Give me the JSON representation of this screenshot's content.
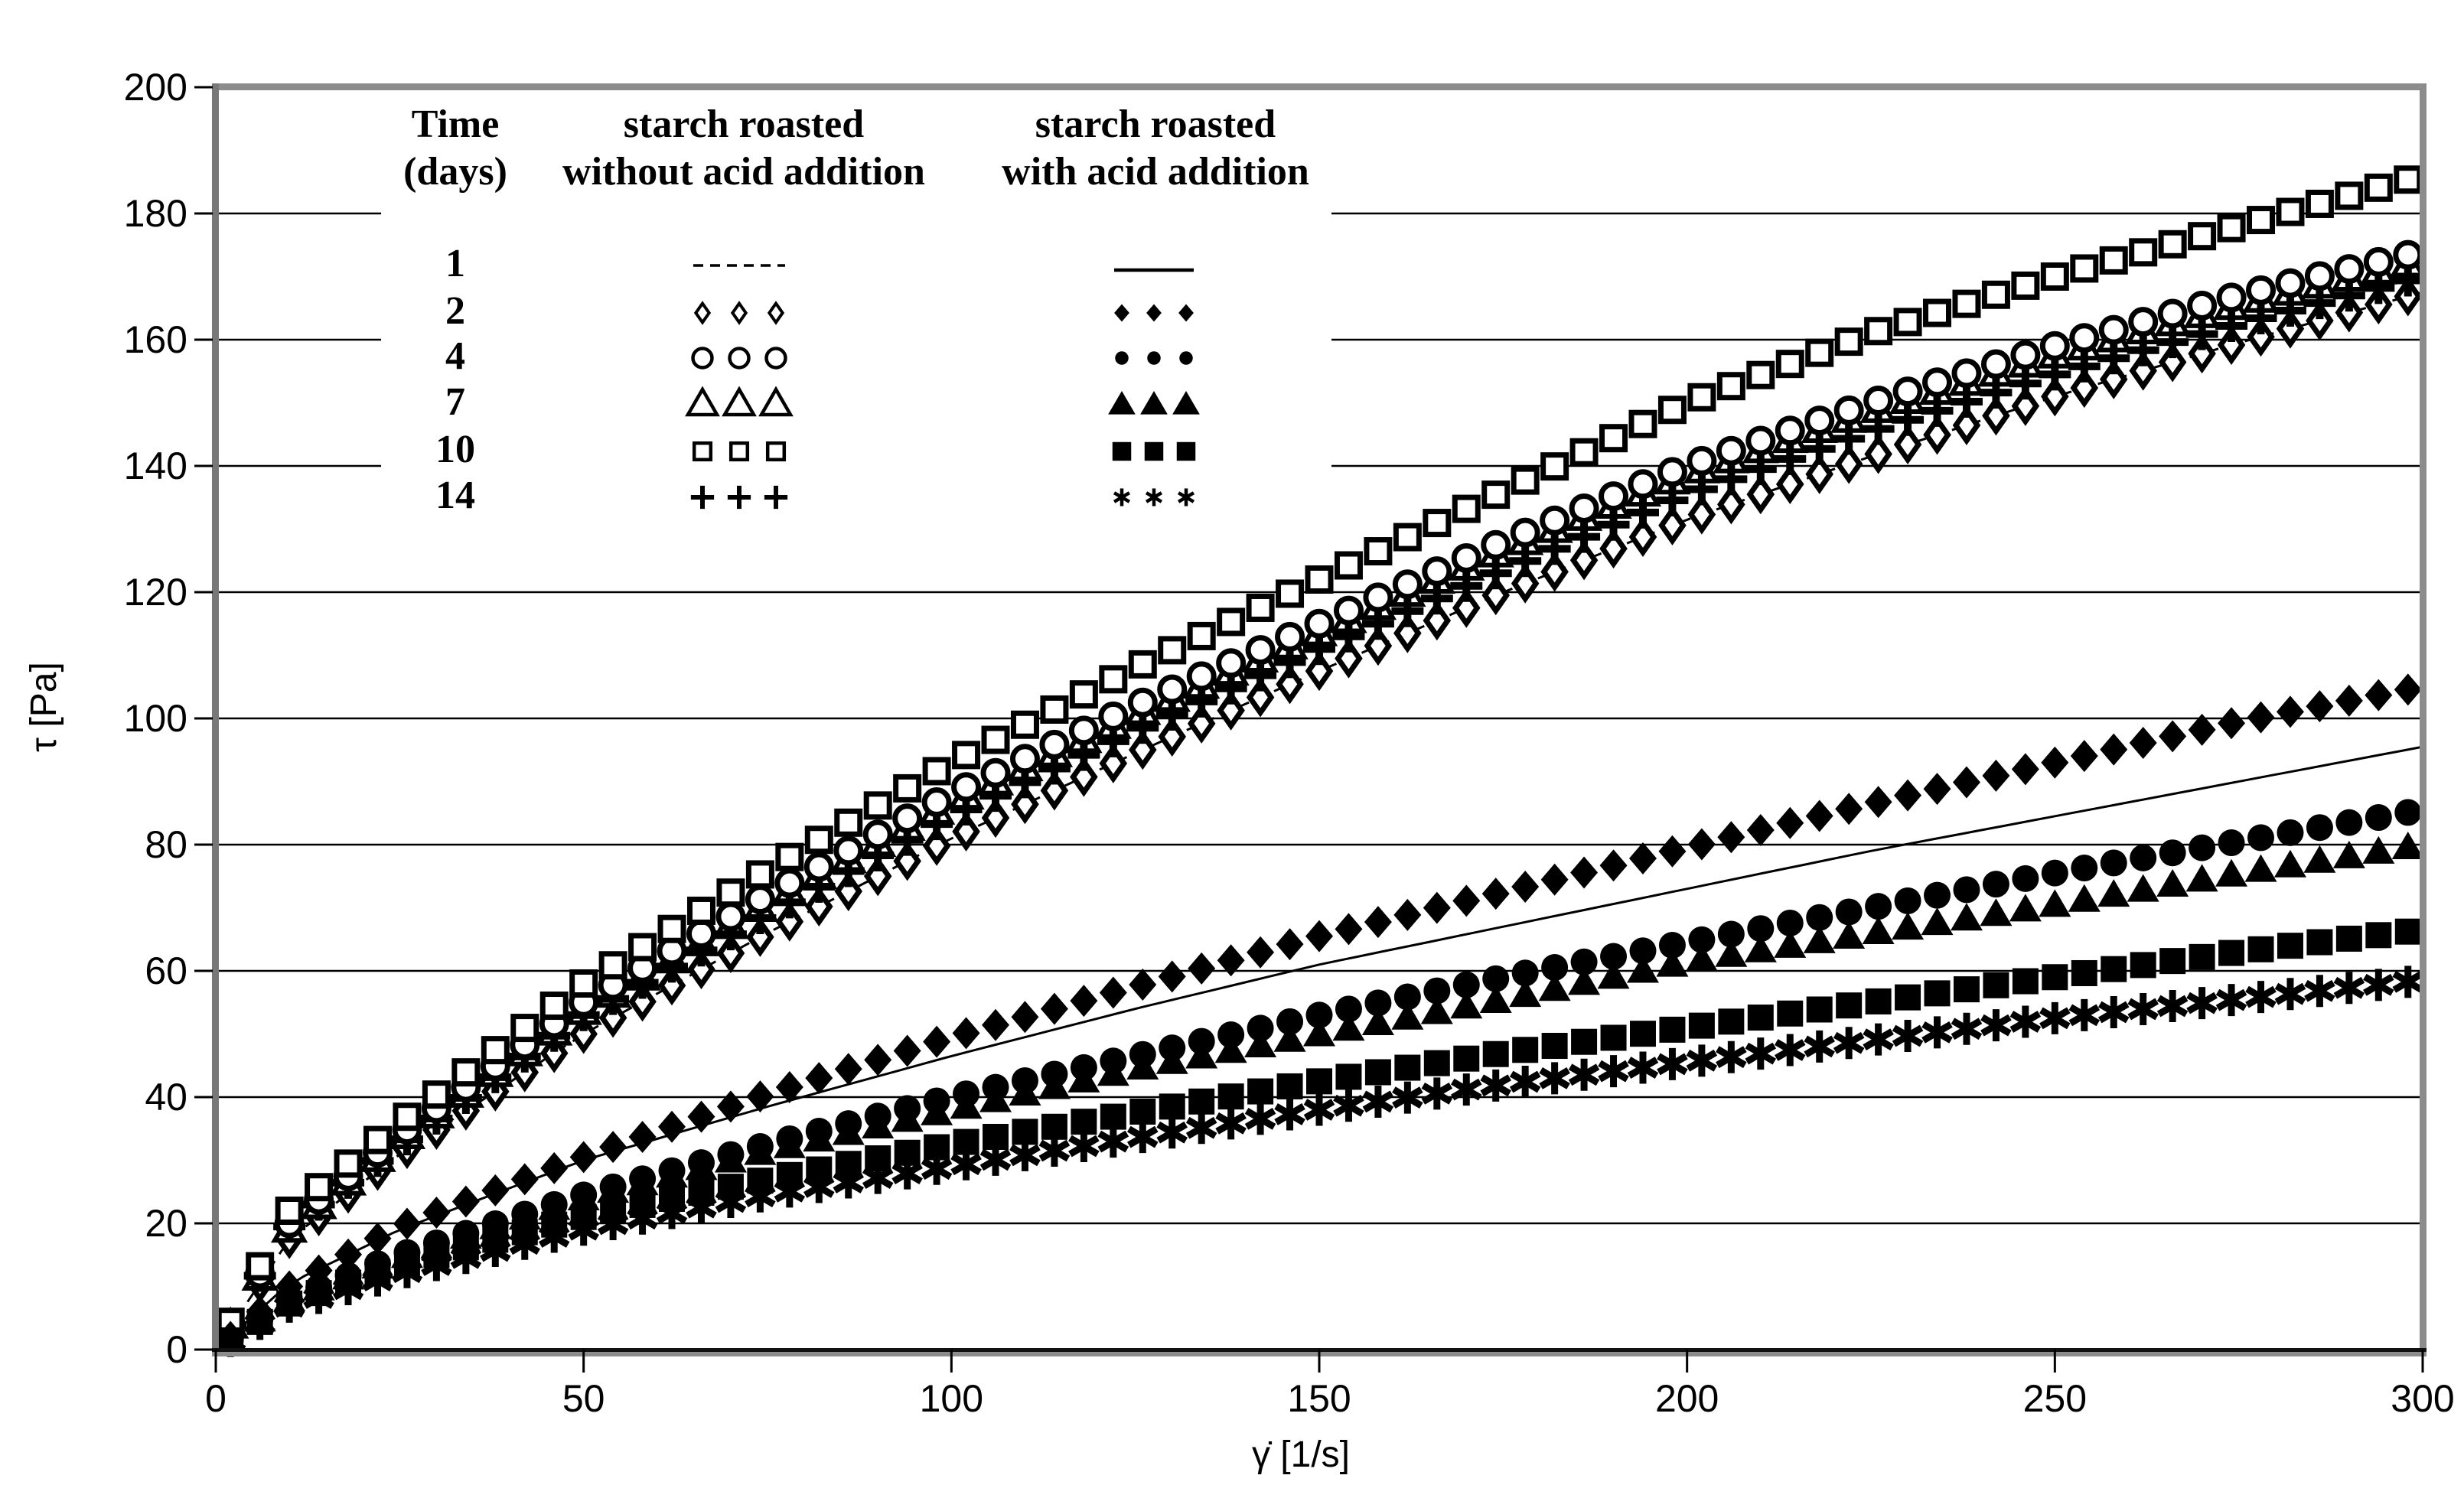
{
  "chart_data": {
    "type": "scatter",
    "title": "",
    "xlabel": "γ̇ [1/s]",
    "ylabel": "τ [Pa]",
    "xlim": [
      0,
      300
    ],
    "ylim": [
      0,
      200
    ],
    "xticks": [
      0,
      50,
      100,
      150,
      200,
      250,
      300
    ],
    "yticks": [
      0,
      20,
      40,
      60,
      80,
      100,
      120,
      140,
      160,
      180,
      200
    ],
    "grid": "horizontal gridlines every 20 Pa",
    "legend_position": "top-left inside plot, table layout, opaque white background",
    "legend": {
      "time_header_line1": "Time",
      "time_header_line2": "(days)",
      "without_header_line1": "starch roasted",
      "without_header_line2": "without acid addition",
      "with_header_line1": "starch roasted",
      "with_header_line2": "with acid addition",
      "rows": [
        {
          "day": "1",
          "without_marker": "dashed-line",
          "with_marker": "solid-line"
        },
        {
          "day": "2",
          "without_marker": "open-diamond",
          "with_marker": "filled-diamond"
        },
        {
          "day": "4",
          "without_marker": "open-circle",
          "with_marker": "filled-circle"
        },
        {
          "day": "7",
          "without_marker": "open-triangle",
          "with_marker": "filled-triangle"
        },
        {
          "day": "10",
          "without_marker": "open-square",
          "with_marker": "filled-square"
        },
        {
          "day": "14",
          "without_marker": "plus",
          "with_marker": "asterisk"
        }
      ]
    },
    "x_samples": [
      0,
      10,
      25,
      50,
      75,
      100,
      125,
      150,
      175,
      200,
      225,
      250,
      275,
      300
    ],
    "marker_x_start": 2,
    "marker_x_step": 4,
    "series": [
      {
        "name": "day-1-without-acid",
        "days": "1",
        "group": "without acid",
        "marker": "none",
        "line": "dashed",
        "values": [
          0,
          17.5,
          31,
          50,
          66,
          81,
          94.5,
          107.5,
          120,
          131.5,
          141.5,
          151,
          159.5,
          167.5
        ]
      },
      {
        "name": "day-1-with-acid",
        "days": "1",
        "group": "with acid",
        "marker": "none",
        "line": "solid",
        "values": [
          0,
          10.5,
          19,
          30,
          38.5,
          46.5,
          54,
          61,
          67,
          73,
          79,
          84.5,
          90,
          95.5
        ]
      },
      {
        "name": "day-2-without-acid",
        "days": "2",
        "group": "without acid",
        "marker": "open-diamond",
        "line": "none",
        "values": [
          0,
          17.5,
          31,
          50,
          66,
          81,
          94.5,
          107.5,
          120,
          131.5,
          141.5,
          151,
          159.5,
          167.5
        ]
      },
      {
        "name": "day-7-without-acid",
        "days": "7",
        "group": "without acid",
        "marker": "open-triangle",
        "line": "none",
        "values": [
          0,
          19,
          33,
          53.5,
          70.5,
          86.5,
          100.5,
          113.5,
          126.5,
          138.5,
          148.5,
          157.5,
          165.5,
          172.5
        ]
      },
      {
        "name": "day-14-without-acid",
        "days": "14",
        "group": "without acid",
        "marker": "plus",
        "line": "none",
        "values": [
          0,
          19.5,
          32.5,
          53,
          69,
          84.5,
          98,
          111,
          123.5,
          135.5,
          145.5,
          154.5,
          162.5,
          170
        ]
      },
      {
        "name": "day-4-without-acid",
        "days": "4",
        "group": "without acid",
        "marker": "open-circle",
        "line": "none",
        "values": [
          0,
          20,
          34,
          55,
          72,
          88,
          102,
          115,
          128,
          140,
          150,
          159,
          167,
          174
        ]
      },
      {
        "name": "day-10-without-acid",
        "days": "10",
        "group": "without acid",
        "marker": "open-square",
        "line": "none",
        "values": [
          0,
          22,
          36,
          58,
          76,
          93,
          108,
          122,
          136,
          150,
          161,
          170,
          178,
          186
        ]
      },
      {
        "name": "day-14-with-acid",
        "days": "14",
        "group": "with acid",
        "marker": "asterisk",
        "line": "none",
        "values": [
          0,
          6.8,
          12,
          19,
          24.5,
          29,
          33.5,
          38,
          42,
          45.5,
          49,
          52.5,
          55.5,
          58.5
        ]
      },
      {
        "name": "day-10-with-acid",
        "days": "10",
        "group": "with acid",
        "marker": "filled-square",
        "line": "none",
        "values": [
          0,
          7.3,
          13.5,
          21,
          27,
          32.5,
          37.5,
          42.5,
          47,
          51,
          55,
          59,
          63,
          66.5
        ]
      },
      {
        "name": "day-7-with-acid",
        "days": "7",
        "group": "with acid",
        "marker": "filled-triangle",
        "line": "none",
        "values": [
          0,
          8,
          14.5,
          24,
          31.5,
          38,
          44.5,
          50,
          55.5,
          61.5,
          66,
          70.5,
          75.5,
          80
        ]
      },
      {
        "name": "day-4-with-acid",
        "days": "4",
        "group": "with acid",
        "marker": "filled-circle",
        "line": "none",
        "values": [
          0,
          8,
          15,
          24.5,
          32.5,
          40,
          46.5,
          53,
          59,
          64.5,
          70,
          75.5,
          80.5,
          85.5
        ]
      },
      {
        "name": "day-2-with-acid",
        "days": "2",
        "group": "with acid",
        "marker": "filled-diamond",
        "line": "none",
        "values": [
          0,
          10,
          19.5,
          30.5,
          40.5,
          49.5,
          57.5,
          65.5,
          72.5,
          79.5,
          86.5,
          93,
          99.5,
          105
        ]
      }
    ],
    "colors": {
      "foreground": "#000000",
      "plot_border": "#8c8c8c",
      "background": "#ffffff"
    }
  }
}
